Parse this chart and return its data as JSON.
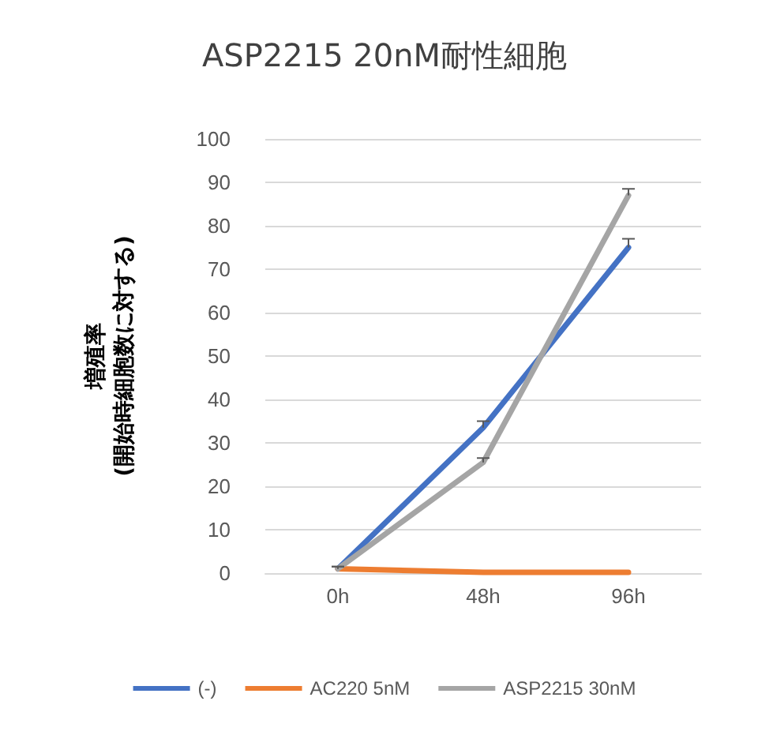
{
  "chart_data": {
    "type": "line",
    "title": "ASP2215 20nM耐性細胞",
    "ylabel": "増殖率\n(開始時細胞数に対する)",
    "categories": [
      "0h",
      "48h",
      "96h"
    ],
    "series": [
      {
        "name": "(-)",
        "color": "#4472c4",
        "values": [
          1,
          33.5,
          75
        ],
        "errors": [
          [
            1,
            1.5
          ],
          [
            33.5,
            35
          ],
          [
            75,
            77
          ]
        ]
      },
      {
        "name": "AC220 5nM",
        "color": "#ed7d31",
        "values": [
          1,
          0.2,
          0.2
        ]
      },
      {
        "name": "ASP2215 30nM",
        "color": "#a5a5a5",
        "values": [
          1,
          25.5,
          87
        ],
        "errors": [
          [
            1,
            1.5
          ],
          [
            25.5,
            26.5
          ],
          [
            87,
            88.5
          ]
        ]
      }
    ],
    "ylim": [
      0,
      100
    ],
    "yticks": [
      0,
      10,
      20,
      30,
      40,
      50,
      60,
      70,
      80,
      90,
      100
    ],
    "grid": "y",
    "legend": "bottom",
    "marker": "none",
    "line_style": "solid"
  }
}
